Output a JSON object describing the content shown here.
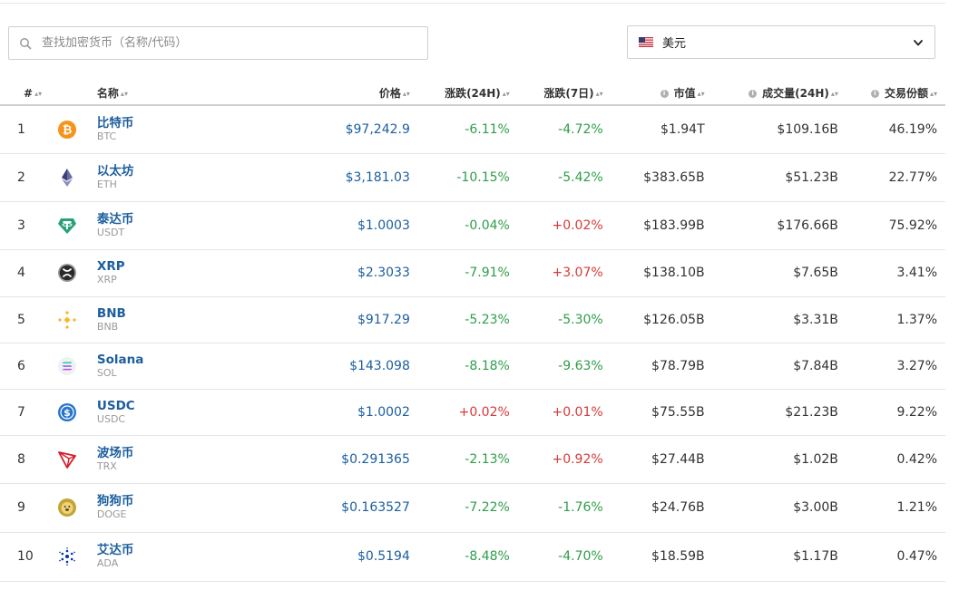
{
  "search": {
    "placeholder": "查找加密货币（名称/代码）"
  },
  "currency": {
    "label": "美元",
    "flag": "us-flag"
  },
  "columns": {
    "rank": "#",
    "name": "名称",
    "price": "价格",
    "change24": "涨跌(24H)",
    "change7": "涨跌(7日)",
    "mcap": "市值",
    "volume": "成交量(24H)",
    "share": "交易份额"
  },
  "colors": {
    "link": "#1c5e9e",
    "up": "#d63a3a",
    "down": "#2e9d4a"
  },
  "rows": [
    {
      "rank": "1",
      "name": "比特币",
      "symbol": "BTC",
      "price": "$97,242.9",
      "change24": "-6.11%",
      "change7": "-4.72%",
      "mcap": "$1.94T",
      "volume": "$109.16B",
      "share": "46.19%",
      "icon": "bitcoin-icon"
    },
    {
      "rank": "2",
      "name": "以太坊",
      "symbol": "ETH",
      "price": "$3,181.03",
      "change24": "-10.15%",
      "change7": "-5.42%",
      "mcap": "$383.65B",
      "volume": "$51.23B",
      "share": "22.77%",
      "icon": "ethereum-icon"
    },
    {
      "rank": "3",
      "name": "泰达币",
      "symbol": "USDT",
      "price": "$1.0003",
      "change24": "-0.04%",
      "change7": "+0.02%",
      "mcap": "$183.99B",
      "volume": "$176.66B",
      "share": "75.92%",
      "icon": "tether-icon"
    },
    {
      "rank": "4",
      "name": "XRP",
      "symbol": "XRP",
      "price": "$2.3033",
      "change24": "-7.91%",
      "change7": "+3.07%",
      "mcap": "$138.10B",
      "volume": "$7.65B",
      "share": "3.41%",
      "icon": "xrp-icon"
    },
    {
      "rank": "5",
      "name": "BNB",
      "symbol": "BNB",
      "price": "$917.29",
      "change24": "-5.23%",
      "change7": "-5.30%",
      "mcap": "$126.05B",
      "volume": "$3.31B",
      "share": "1.37%",
      "icon": "bnb-icon"
    },
    {
      "rank": "6",
      "name": "Solana",
      "symbol": "SOL",
      "price": "$143.098",
      "change24": "-8.18%",
      "change7": "-9.63%",
      "mcap": "$78.79B",
      "volume": "$7.84B",
      "share": "3.27%",
      "icon": "solana-icon"
    },
    {
      "rank": "7",
      "name": "USDC",
      "symbol": "USDC",
      "price": "$1.0002",
      "change24": "+0.02%",
      "change7": "+0.01%",
      "mcap": "$75.55B",
      "volume": "$21.23B",
      "share": "9.22%",
      "icon": "usdc-icon"
    },
    {
      "rank": "8",
      "name": "波场币",
      "symbol": "TRX",
      "price": "$0.291365",
      "change24": "-2.13%",
      "change7": "+0.92%",
      "mcap": "$27.44B",
      "volume": "$1.02B",
      "share": "0.42%",
      "icon": "tron-icon"
    },
    {
      "rank": "9",
      "name": "狗狗币",
      "symbol": "DOGE",
      "price": "$0.163527",
      "change24": "-7.22%",
      "change7": "-1.76%",
      "mcap": "$24.76B",
      "volume": "$3.00B",
      "share": "1.21%",
      "icon": "dogecoin-icon"
    },
    {
      "rank": "10",
      "name": "艾达币",
      "symbol": "ADA",
      "price": "$0.5194",
      "change24": "-8.48%",
      "change7": "-4.70%",
      "mcap": "$18.59B",
      "volume": "$1.17B",
      "share": "0.47%",
      "icon": "cardano-icon"
    }
  ]
}
